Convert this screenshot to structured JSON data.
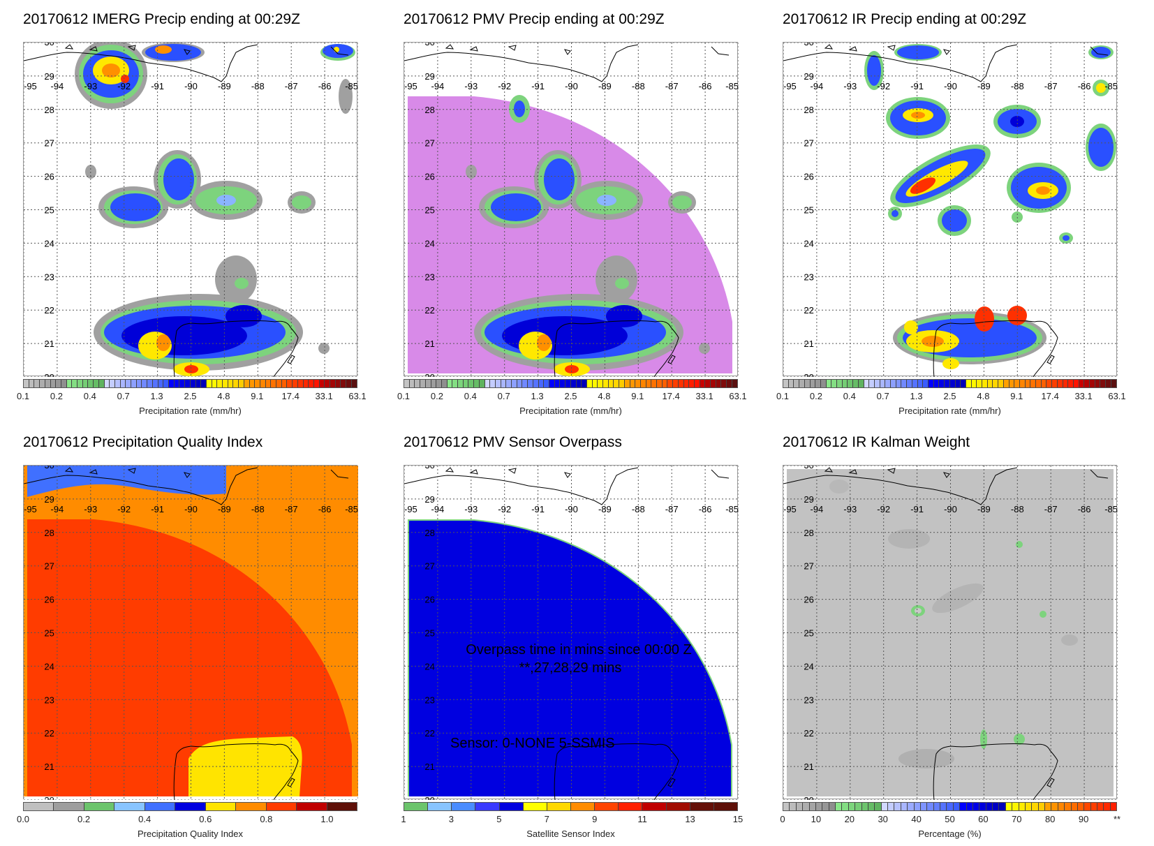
{
  "chart_data": [
    {
      "type": "heatmap",
      "title": "20170612 IMERG Precip ending at 00:29Z",
      "colorbar_label": "Precipitation rate (mm/hr)"
    },
    {
      "type": "heatmap",
      "title": "20170612 PMV Precip ending at 00:29Z",
      "colorbar_label": "Precipitation rate (mm/hr)"
    },
    {
      "type": "heatmap",
      "title": "20170612 IR Precip ending at 00:29Z",
      "colorbar_label": "Precipitation rate (mm/hr)"
    },
    {
      "type": "heatmap",
      "title": "20170612 Precipitation Quality Index",
      "colorbar_label": "Precipitation Quality Index"
    },
    {
      "type": "heatmap",
      "title": "20170612 PMV Sensor Overpass",
      "colorbar_label": "Satellite Sensor Index",
      "annotations": [
        "Overpass time in mins since 00:00 Z",
        "**,27,28,29 mins",
        "Sensor:   0-NONE  5-SSMIS"
      ]
    },
    {
      "type": "heatmap",
      "title": "20170612 IR Kalman Weight",
      "colorbar_label": "Percentage (%)"
    }
  ],
  "map_axes": {
    "lon_range": [
      -95,
      -85
    ],
    "lat_range": [
      20,
      30
    ],
    "lon_labels": [
      "-95",
      "-94",
      "-93",
      "-92",
      "-91",
      "-90",
      "-89",
      "-88",
      "-87",
      "-86",
      "-85"
    ],
    "lat_labels": [
      "30",
      "29",
      "28",
      "27",
      "26",
      "25",
      "24",
      "23",
      "22",
      "21",
      "20"
    ]
  },
  "colorbars": {
    "precip": {
      "groups": [
        {
          "from": "#c4c4c4",
          "to": "#8e8e8e",
          "count": 8
        },
        {
          "from": "#8ae68a",
          "to": "#5fb35f",
          "count": 7
        },
        {
          "from": "#d2d8ff",
          "to": "#3a5cff",
          "count": 12
        },
        {
          "from": "#0000ff",
          "to": "#0000b8",
          "count": 7
        },
        {
          "from": "#ffff00",
          "to": "#ffcc00",
          "count": 7
        },
        {
          "from": "#ffa000",
          "to": "#ff6000",
          "count": 8
        },
        {
          "from": "#ff4800",
          "to": "#ff1400",
          "count": 6
        },
        {
          "from": "#c80000",
          "to": "#5a1010",
          "count": 7
        }
      ],
      "range": [
        0,
        10
      ],
      "ticks": [
        {
          "v": 0,
          "label": "0.1"
        },
        {
          "v": 1,
          "label": "0.2"
        },
        {
          "v": 2,
          "label": "0.4"
        },
        {
          "v": 3,
          "label": "0.7"
        },
        {
          "v": 4,
          "label": "1.3"
        },
        {
          "v": 5,
          "label": "2.5"
        },
        {
          "v": 6,
          "label": "4.8"
        },
        {
          "v": 7,
          "label": "9.1"
        },
        {
          "v": 8,
          "label": "17.4"
        },
        {
          "v": 9,
          "label": "33.1"
        },
        {
          "v": 10,
          "label": "63.1"
        }
      ]
    },
    "quality": {
      "groups": [
        {
          "from": "#c0c0c0",
          "to": "#c0c0c0",
          "count": 1
        },
        {
          "from": "#9e9e9e",
          "to": "#9e9e9e",
          "count": 1
        },
        {
          "from": "#6cc46c",
          "to": "#6cc46c",
          "count": 1
        },
        {
          "from": "#88c4ff",
          "to": "#88c4ff",
          "count": 1
        },
        {
          "from": "#4070ff",
          "to": "#4070ff",
          "count": 1
        },
        {
          "from": "#0000e0",
          "to": "#0000e0",
          "count": 1
        },
        {
          "from": "#ffe400",
          "to": "#ffe400",
          "count": 1
        },
        {
          "from": "#ff8c00",
          "to": "#ff8c00",
          "count": 1
        },
        {
          "from": "#ff3c00",
          "to": "#ff3c00",
          "count": 1
        },
        {
          "from": "#c00000",
          "to": "#c00000",
          "count": 1
        },
        {
          "from": "#5e1008",
          "to": "#5e1008",
          "count": 1
        }
      ],
      "range": [
        0,
        1.1
      ],
      "ticks": [
        {
          "v": 0,
          "label": "0.0"
        },
        {
          "v": 0.2,
          "label": "0.2"
        },
        {
          "v": 0.4,
          "label": "0.4"
        },
        {
          "v": 0.6,
          "label": "0.6"
        },
        {
          "v": 0.8,
          "label": "0.8"
        },
        {
          "v": 1.0,
          "label": "1.0"
        }
      ]
    },
    "sensor": {
      "groups": [
        {
          "from": "#6cc46c",
          "to": "#6cc46c",
          "count": 1
        },
        {
          "from": "#88c4ff",
          "to": "#88c4ff",
          "count": 1
        },
        {
          "from": "#4a8cff",
          "to": "#4a8cff",
          "count": 1
        },
        {
          "from": "#3a3aff",
          "to": "#3a3aff",
          "count": 1
        },
        {
          "from": "#0000e0",
          "to": "#0000e0",
          "count": 1
        },
        {
          "from": "#ffff00",
          "to": "#ffff00",
          "count": 1
        },
        {
          "from": "#ffd800",
          "to": "#ffd800",
          "count": 1
        },
        {
          "from": "#ff8c00",
          "to": "#ff8c00",
          "count": 1
        },
        {
          "from": "#ff4400",
          "to": "#ff4400",
          "count": 1
        },
        {
          "from": "#ff2000",
          "to": "#ff2000",
          "count": 1
        },
        {
          "from": "#c00000",
          "to": "#c00000",
          "count": 1
        },
        {
          "from": "#a00c00",
          "to": "#a00c00",
          "count": 1
        },
        {
          "from": "#641008",
          "to": "#641008",
          "count": 1
        },
        {
          "from": "#5e1008",
          "to": "#5e1008",
          "count": 1
        }
      ],
      "range": [
        1,
        15
      ],
      "ticks": [
        {
          "v": 1,
          "label": "1"
        },
        {
          "v": 3,
          "label": "3"
        },
        {
          "v": 5,
          "label": "5"
        },
        {
          "v": 7,
          "label": "7"
        },
        {
          "v": 9,
          "label": "9"
        },
        {
          "v": 11,
          "label": "11"
        },
        {
          "v": 13,
          "label": "13"
        },
        {
          "v": 15,
          "label": "15"
        }
      ]
    },
    "kalman": {
      "groups": [
        {
          "from": "#c4c4c4",
          "to": "#8e8e8e",
          "count": 8
        },
        {
          "from": "#8ae68a",
          "to": "#5fb35f",
          "count": 7
        },
        {
          "from": "#d2d8ff",
          "to": "#3a5cff",
          "count": 12
        },
        {
          "from": "#0000ff",
          "to": "#0000b8",
          "count": 7
        },
        {
          "from": "#ffff00",
          "to": "#ffcc00",
          "count": 6
        },
        {
          "from": "#ffa000",
          "to": "#ff6000",
          "count": 6
        },
        {
          "from": "#ff4800",
          "to": "#ff2000",
          "count": 5
        }
      ],
      "range": [
        0,
        100
      ],
      "ticks": [
        {
          "v": 0,
          "label": "0"
        },
        {
          "v": 10,
          "label": "10"
        },
        {
          "v": 20,
          "label": "20"
        },
        {
          "v": 30,
          "label": "30"
        },
        {
          "v": 40,
          "label": "40"
        },
        {
          "v": 50,
          "label": "50"
        },
        {
          "v": 60,
          "label": "60"
        },
        {
          "v": 70,
          "label": "70"
        },
        {
          "v": 80,
          "label": "80"
        },
        {
          "v": 90,
          "label": "90"
        },
        {
          "v": 100,
          "label": "**"
        }
      ]
    }
  },
  "colors": {
    "pmv_coverage": "#d88ae8",
    "overpass_blue": "#0000e0",
    "quality_orange": "#ff8c00",
    "quality_red": "#ff3c00",
    "quality_yellow": "#ffe400",
    "quality_blue": "#4070ff",
    "kalman_gray": "#c2c2c2"
  }
}
